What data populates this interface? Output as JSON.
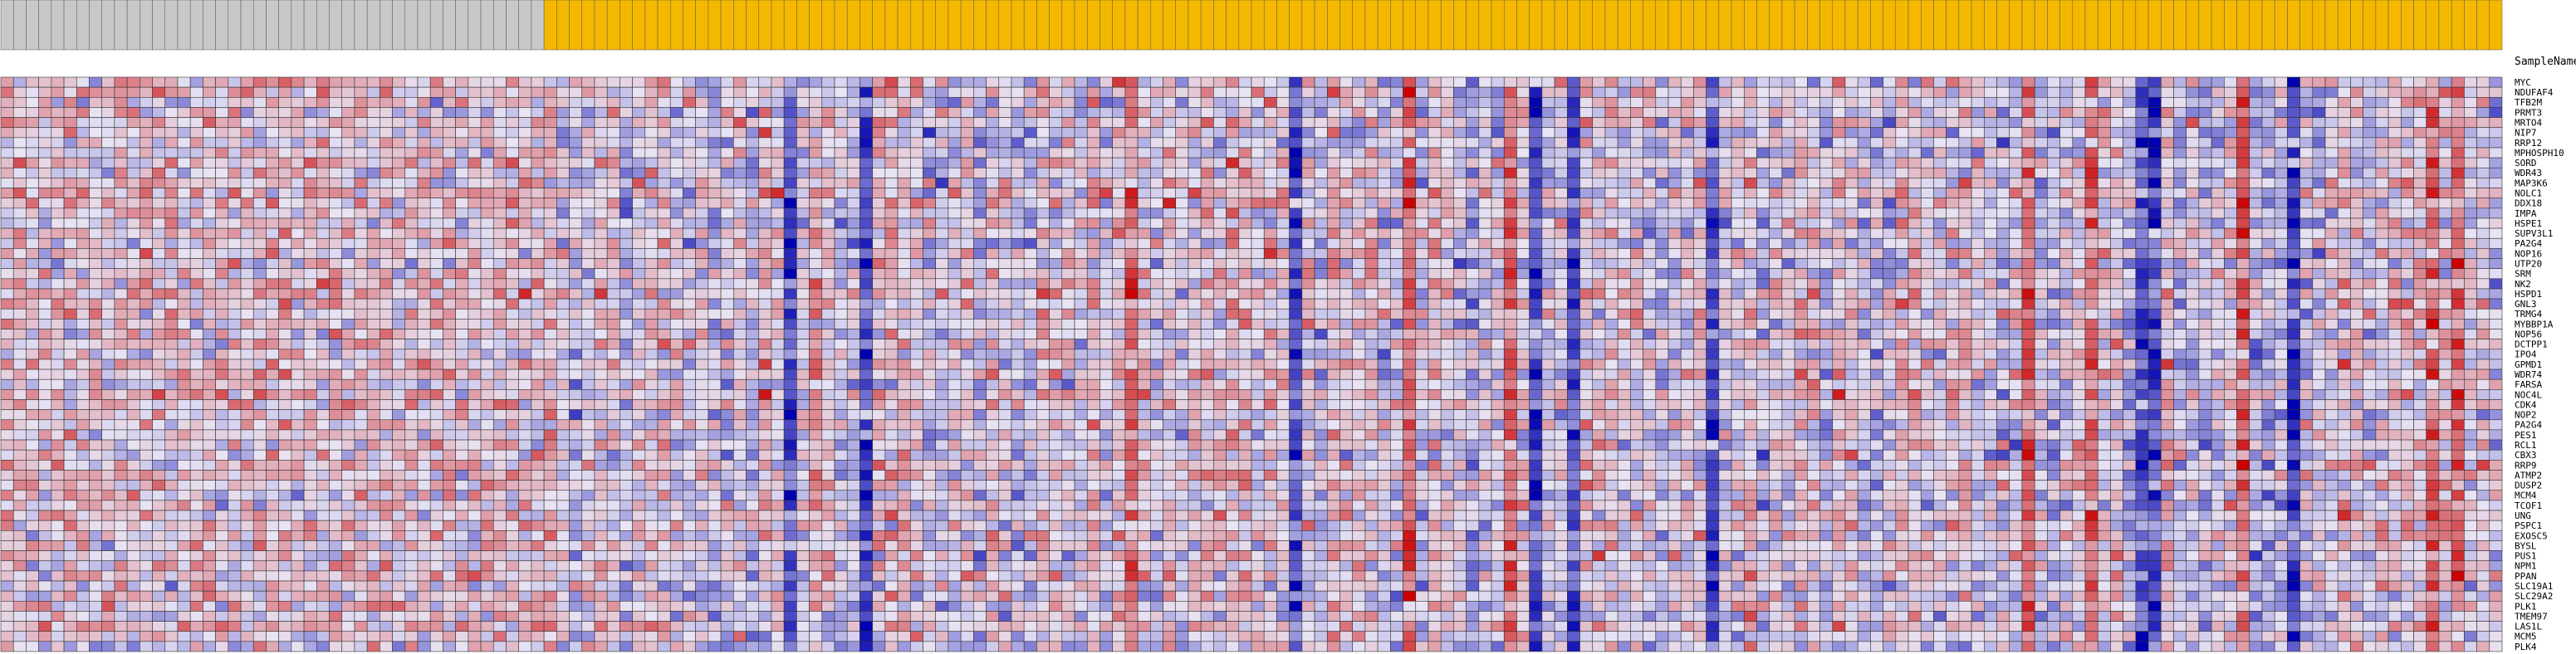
{
  "chart_data": {
    "type": "heatmap",
    "title": "",
    "xlabel": "",
    "ylabel": "",
    "column_header_label": "SampleName",
    "group_colors": {
      "control": "#c8c8c8",
      "treatment": "#f5b800"
    },
    "group_sizes": {
      "control": 43,
      "treatment": 155
    },
    "color_scale": {
      "low": "#0000b0",
      "mid": "#e8e4f4",
      "high": "#cc0000"
    },
    "value_range": [
      -2.5,
      2.5
    ],
    "grid": true,
    "legend": "none",
    "rows": [
      "MYC",
      "NDUFAF4",
      "TFB2M",
      "PRMT3",
      "MRTO4",
      "NIP7",
      "RRP12",
      "MPHOSPH10",
      "SORD",
      "WDR43",
      "MAP3K6",
      "NOLC1",
      "DDX18",
      "IMPA",
      "HSPE1",
      "SUPV3L1",
      "PA2G4",
      "NOP16",
      "UTP20",
      "SRM",
      "NK2",
      "HSPD1",
      "GNL3",
      "TRMG4",
      "MYBBP1A",
      "NOP56",
      "DCTPP1",
      "IPO4",
      "GPMD1",
      "WDR74",
      "FARSA",
      "NOC4L",
      "CDK4",
      "NOP2",
      "PA2G4",
      "PES1",
      "RCL1",
      "CBX3",
      "RRP9",
      "ATMP2",
      "DUSP2",
      "MCM4",
      "TCOF1",
      "UNG",
      "PSPC1",
      "EXOSC5",
      "BYSL",
      "PUS1",
      "NPM1",
      "PPAN",
      "SLC19A1",
      "SLC29A2",
      "PLK1",
      "TMEM97",
      "LAS1L",
      "MCM5",
      "PLK4"
    ]
  }
}
